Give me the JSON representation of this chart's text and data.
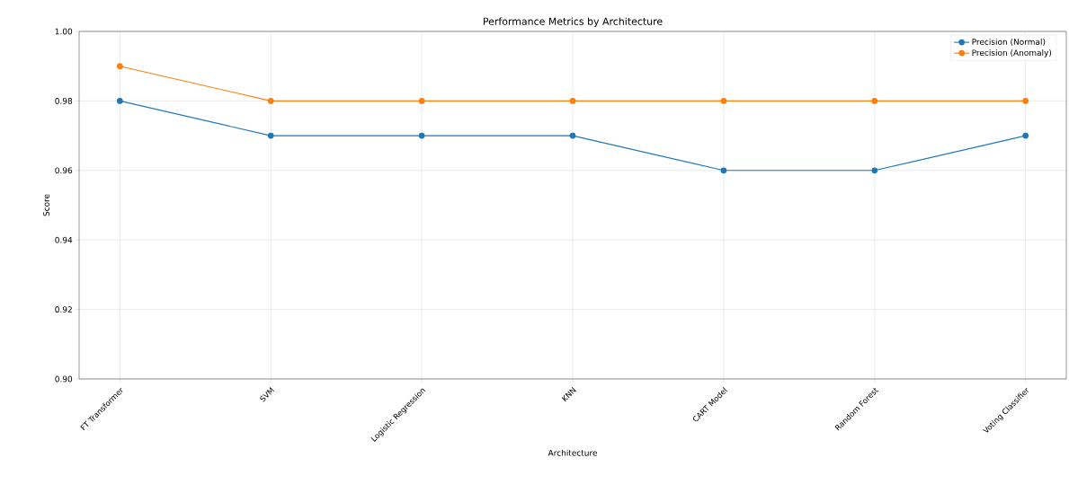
{
  "chart_data": {
    "type": "line",
    "title": "Performance Metrics by Architecture",
    "xlabel": "Architecture",
    "ylabel": "Score",
    "categories": [
      "FT Transformer",
      "SVM",
      "Logistic Regression",
      "KNN",
      "CART Model",
      "Random Forest",
      "Voting Classifier"
    ],
    "series": [
      {
        "name": "Precision (Normal)",
        "color": "#1f77b4",
        "values": [
          0.98,
          0.97,
          0.97,
          0.97,
          0.96,
          0.96,
          0.97
        ]
      },
      {
        "name": "Precision (Anomaly)",
        "color": "#ff7f0e",
        "values": [
          0.99,
          0.98,
          0.98,
          0.98,
          0.98,
          0.98,
          0.98
        ]
      }
    ],
    "ylim": [
      0.9,
      1.0
    ],
    "yticks": [
      {
        "value": 0.9,
        "label": "0.90"
      },
      {
        "value": 0.92,
        "label": "0.92"
      },
      {
        "value": 0.94,
        "label": "0.94"
      },
      {
        "value": 0.96,
        "label": "0.96"
      },
      {
        "value": 0.98,
        "label": "0.98"
      },
      {
        "value": 1.0,
        "label": "1.00"
      }
    ],
    "grid": true,
    "legend": "top right",
    "marker": "circle",
    "line_style": "solid"
  }
}
